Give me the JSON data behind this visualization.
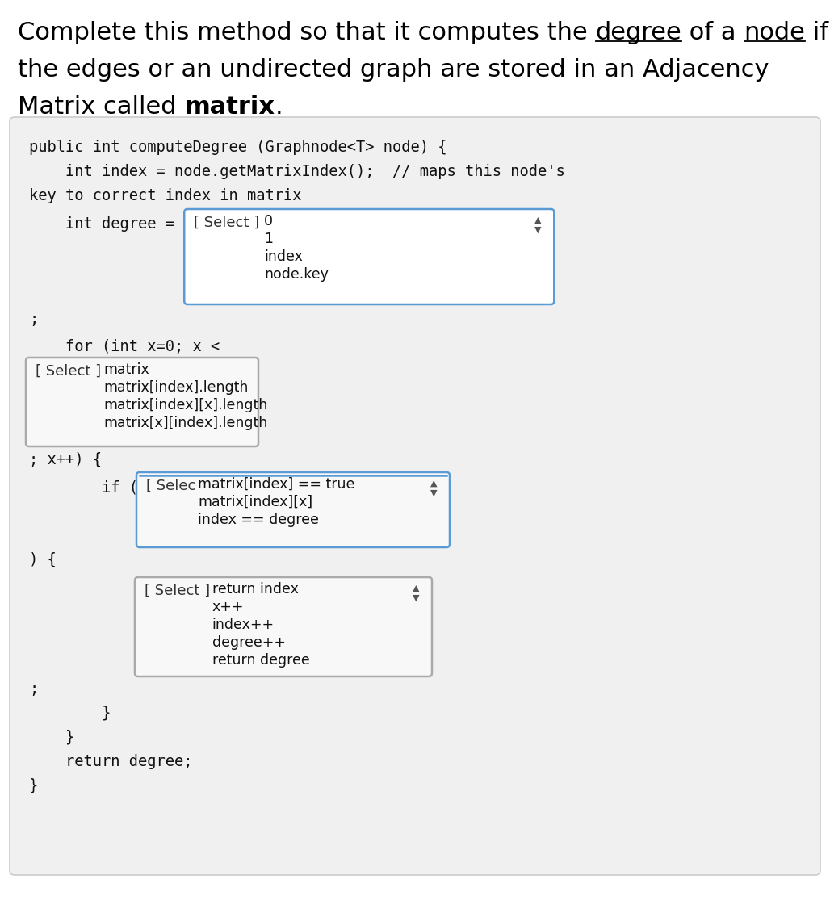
{
  "bg_color": "#ffffff",
  "code_bg": "#f0f0f0",
  "title_fs": 22,
  "code_fs": 13.5,
  "drop_fs": 13,
  "opt_fs": 12.5,
  "title_parts_line1": [
    [
      "Complete this method so that it computes the ",
      false
    ],
    [
      "degree",
      true
    ],
    [
      " of a ",
      false
    ],
    [
      "node",
      true
    ],
    [
      " if",
      false
    ]
  ],
  "title_line2": "the edges or an undirected graph are stored in an Adjacency",
  "title_line3_plain": "Matrix called ",
  "title_line3_bold": "matrix",
  "title_line3_end": ".",
  "dd1_label": "[ Select ]",
  "dd1_options": [
    "0",
    "1",
    "index",
    "node.key"
  ],
  "dd1_border": "#5b9bd5",
  "dd1_bg": "#ffffff",
  "dd2_label": "[ Select ]",
  "dd2_options": [
    "matrix",
    "matrix[index].length",
    "matrix[index][x].length",
    "matrix[x][index].length"
  ],
  "dd2_border": "#aaaaaa",
  "dd2_bg": "#f8f8f8",
  "dd3_label": "[ Selec",
  "dd3_options": [
    "matrix[index] == true",
    "matrix[index][x]",
    "index == degree"
  ],
  "dd3_border": "#5b9bd5",
  "dd3_bg": "#f8f8f8",
  "dd4_label": "[ Select ]",
  "dd4_options": [
    "return index",
    "x++",
    "index++",
    "degree++",
    "return degree"
  ],
  "dd4_border": "#aaaaaa",
  "dd4_bg": "#f8f8f8"
}
